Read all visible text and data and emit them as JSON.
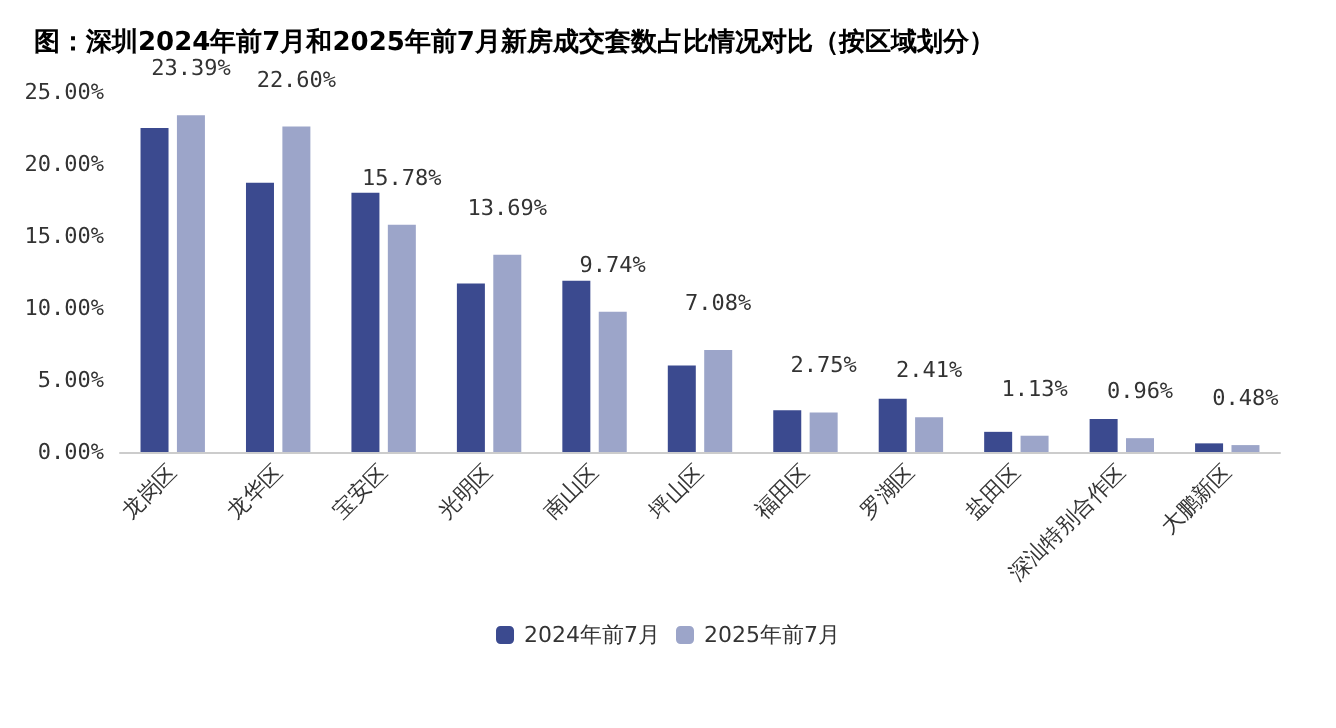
{
  "chart_data": {
    "type": "bar",
    "title": "图：深圳2024年前7月和2025年前7月新房成交套数占比情况对比（按区域划分）",
    "categories": [
      "龙岗区",
      "龙华区",
      "宝安区",
      "光明区",
      "南山区",
      "坪山区",
      "福田区",
      "罗湖区",
      "盐田区",
      "深汕特别合作区",
      "大鹏新区"
    ],
    "series": [
      {
        "name": "2024年前7月",
        "color": "#3b4a8f",
        "values": [
          22.5,
          18.7,
          18.0,
          11.7,
          11.9,
          6.0,
          2.9,
          3.7,
          1.4,
          2.3,
          0.6
        ]
      },
      {
        "name": "2025年前7月",
        "color": "#9ca5c9",
        "values": [
          23.39,
          22.6,
          15.78,
          13.69,
          9.74,
          7.08,
          2.75,
          2.41,
          1.13,
          0.96,
          0.48
        ],
        "value_labels": [
          "23.39%",
          "22.60%",
          "15.78%",
          "13.69%",
          "9.74%",
          "7.08%",
          "2.75%",
          "2.41%",
          "1.13%",
          "0.96%",
          "0.48%"
        ]
      }
    ],
    "ylim": [
      0,
      25
    ],
    "yticks": [
      {
        "value": 0,
        "label": "0.00%"
      },
      {
        "value": 5,
        "label": "5.00%"
      },
      {
        "value": 10,
        "label": "10.00%"
      },
      {
        "value": 15,
        "label": "15.00%"
      },
      {
        "value": 20,
        "label": "20.00%"
      },
      {
        "value": 25,
        "label": "25.00%"
      }
    ],
    "grid": false,
    "legend": "bottom"
  }
}
